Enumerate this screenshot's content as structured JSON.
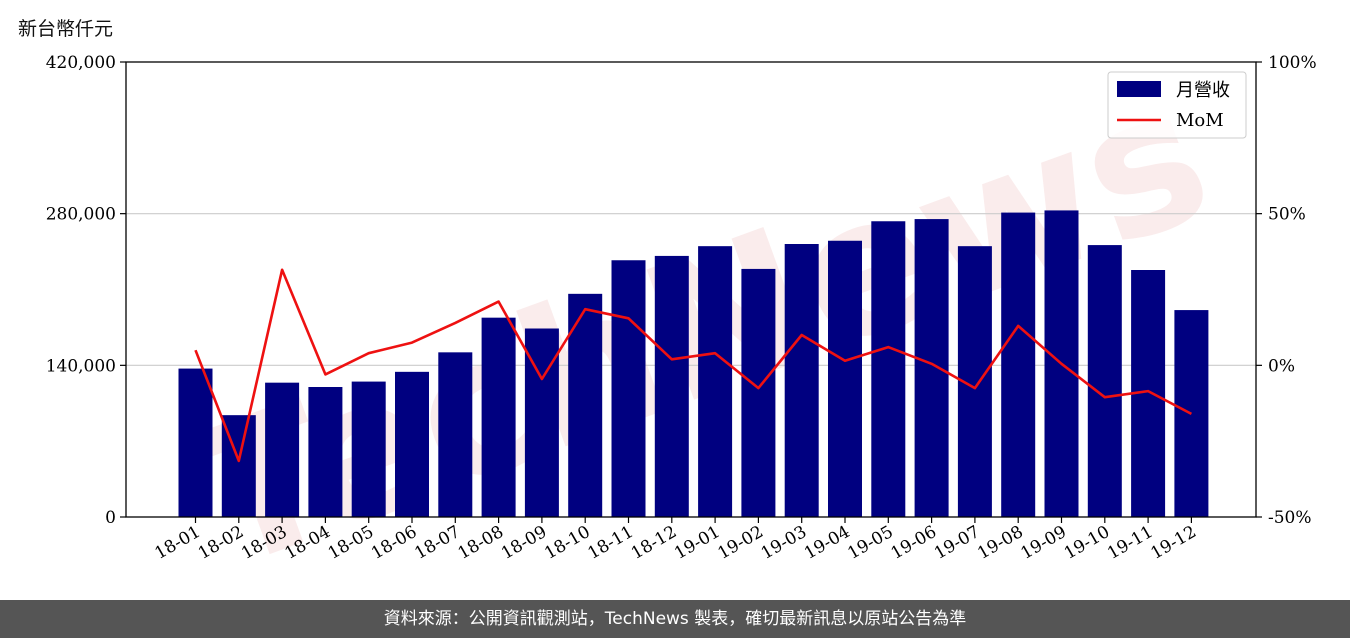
{
  "unit_label": "新台幣仟元",
  "footer": "資料來源：公開資訊觀測站，TechNews 製表，確切最新訊息以原站公告為準",
  "watermark": "TechNews",
  "colors": {
    "bar": "#000080",
    "line": "#ee1111",
    "grid": "#cccccc",
    "footer_bg": "#555555"
  },
  "chart_data": {
    "type": "bar",
    "categories": [
      "18-01",
      "18-02",
      "18-03",
      "18-04",
      "18-05",
      "18-06",
      "18-07",
      "18-08",
      "18-09",
      "18-10",
      "18-11",
      "18-12",
      "19-01",
      "19-02",
      "19-03",
      "19-04",
      "19-05",
      "19-06",
      "19-07",
      "19-08",
      "19-09",
      "19-10",
      "19-11",
      "19-12"
    ],
    "series": [
      {
        "name": "月營收",
        "type": "bar",
        "axis": "left",
        "values": [
          137000,
          94000,
          124000,
          120000,
          125000,
          134000,
          152000,
          184000,
          174000,
          206000,
          237000,
          241000,
          250000,
          229000,
          252000,
          255000,
          273000,
          275000,
          250000,
          281000,
          283000,
          251000,
          228000,
          191000
        ]
      },
      {
        "name": "MoM",
        "type": "line",
        "axis": "right",
        "values": [
          5.0,
          -31.5,
          31.5,
          -3.0,
          4.0,
          7.5,
          14.0,
          21.0,
          -4.5,
          18.5,
          15.5,
          2.0,
          4.0,
          -7.5,
          10.0,
          1.5,
          6.0,
          0.5,
          -7.5,
          13.0,
          0.5,
          -10.5,
          -8.5,
          -16.0
        ]
      }
    ],
    "left_axis": {
      "ylim": [
        0,
        420000
      ],
      "ticks": [
        0,
        140000,
        280000,
        420000
      ],
      "tick_labels": [
        "0",
        "140,000",
        "280,000",
        "420,000"
      ]
    },
    "right_axis": {
      "ylim": [
        -50,
        100
      ],
      "ticks": [
        -50,
        0,
        50,
        100
      ],
      "tick_labels": [
        "-50%",
        "0%",
        "50%",
        "100%"
      ]
    },
    "grid": "horizontal",
    "legend": "top-right"
  }
}
